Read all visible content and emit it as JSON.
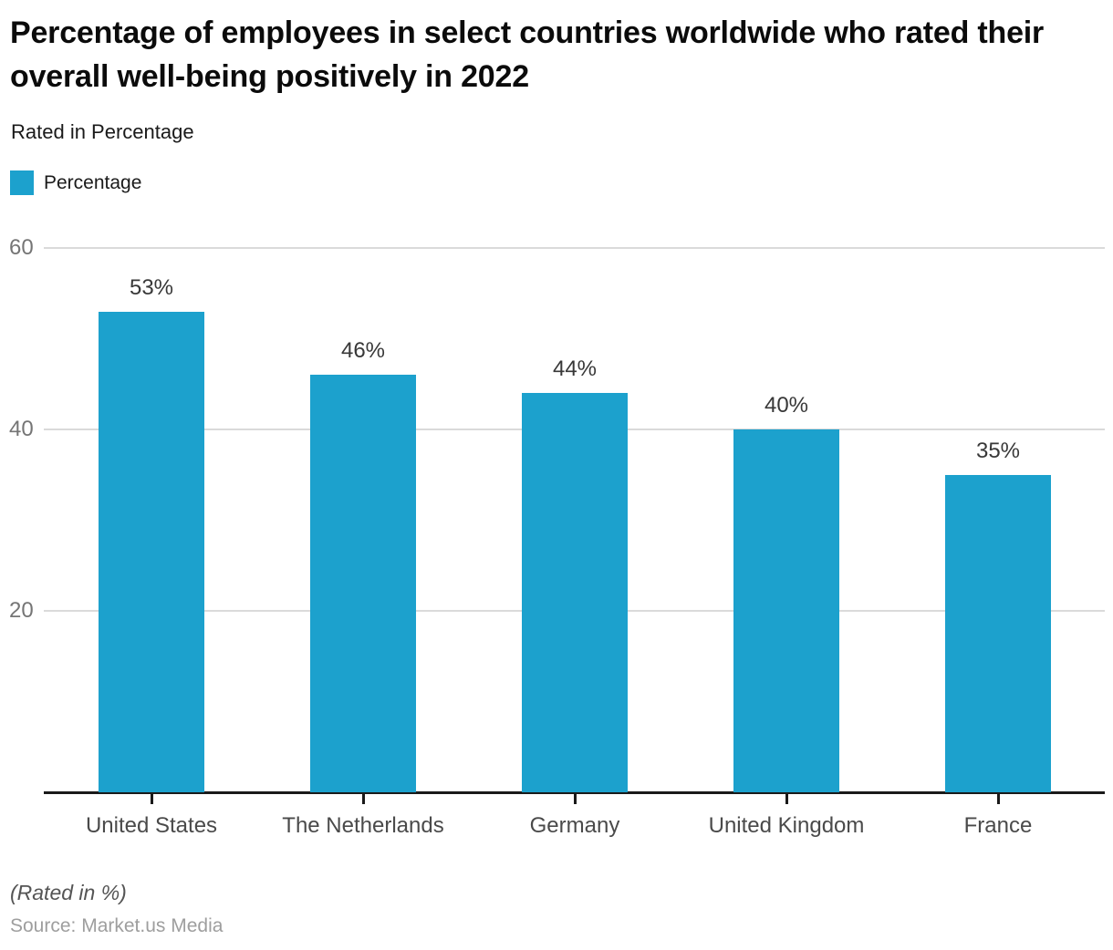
{
  "header": {
    "title": "Percentage of employees in select countries worldwide who rated their overall well-being positively in 2022",
    "subtitle": "Rated in Percentage"
  },
  "legend": {
    "label": "Percentage",
    "swatch_color": "#1CA1CD"
  },
  "chart_data": {
    "type": "bar",
    "title": "Percentage of employees in select countries worldwide who rated their overall well-being positively in 2022",
    "subtitle": "Rated in Percentage",
    "series_name": "Percentage",
    "categories": [
      "United States",
      "The Netherlands",
      "Germany",
      "United Kingdom",
      "France"
    ],
    "values": [
      53,
      46,
      44,
      40,
      35
    ],
    "value_labels": [
      "53%",
      "46%",
      "44%",
      "40%",
      "35%"
    ],
    "xlabel": "",
    "ylabel": "",
    "ylim": [
      0,
      60
    ],
    "yticks": [
      20,
      40,
      60
    ],
    "bar_color": "#1CA1CD",
    "grid": "horizontal",
    "legend_position": "top-left"
  },
  "footer": {
    "note": "(Rated in %)",
    "source": "Source: Market.us Media"
  }
}
